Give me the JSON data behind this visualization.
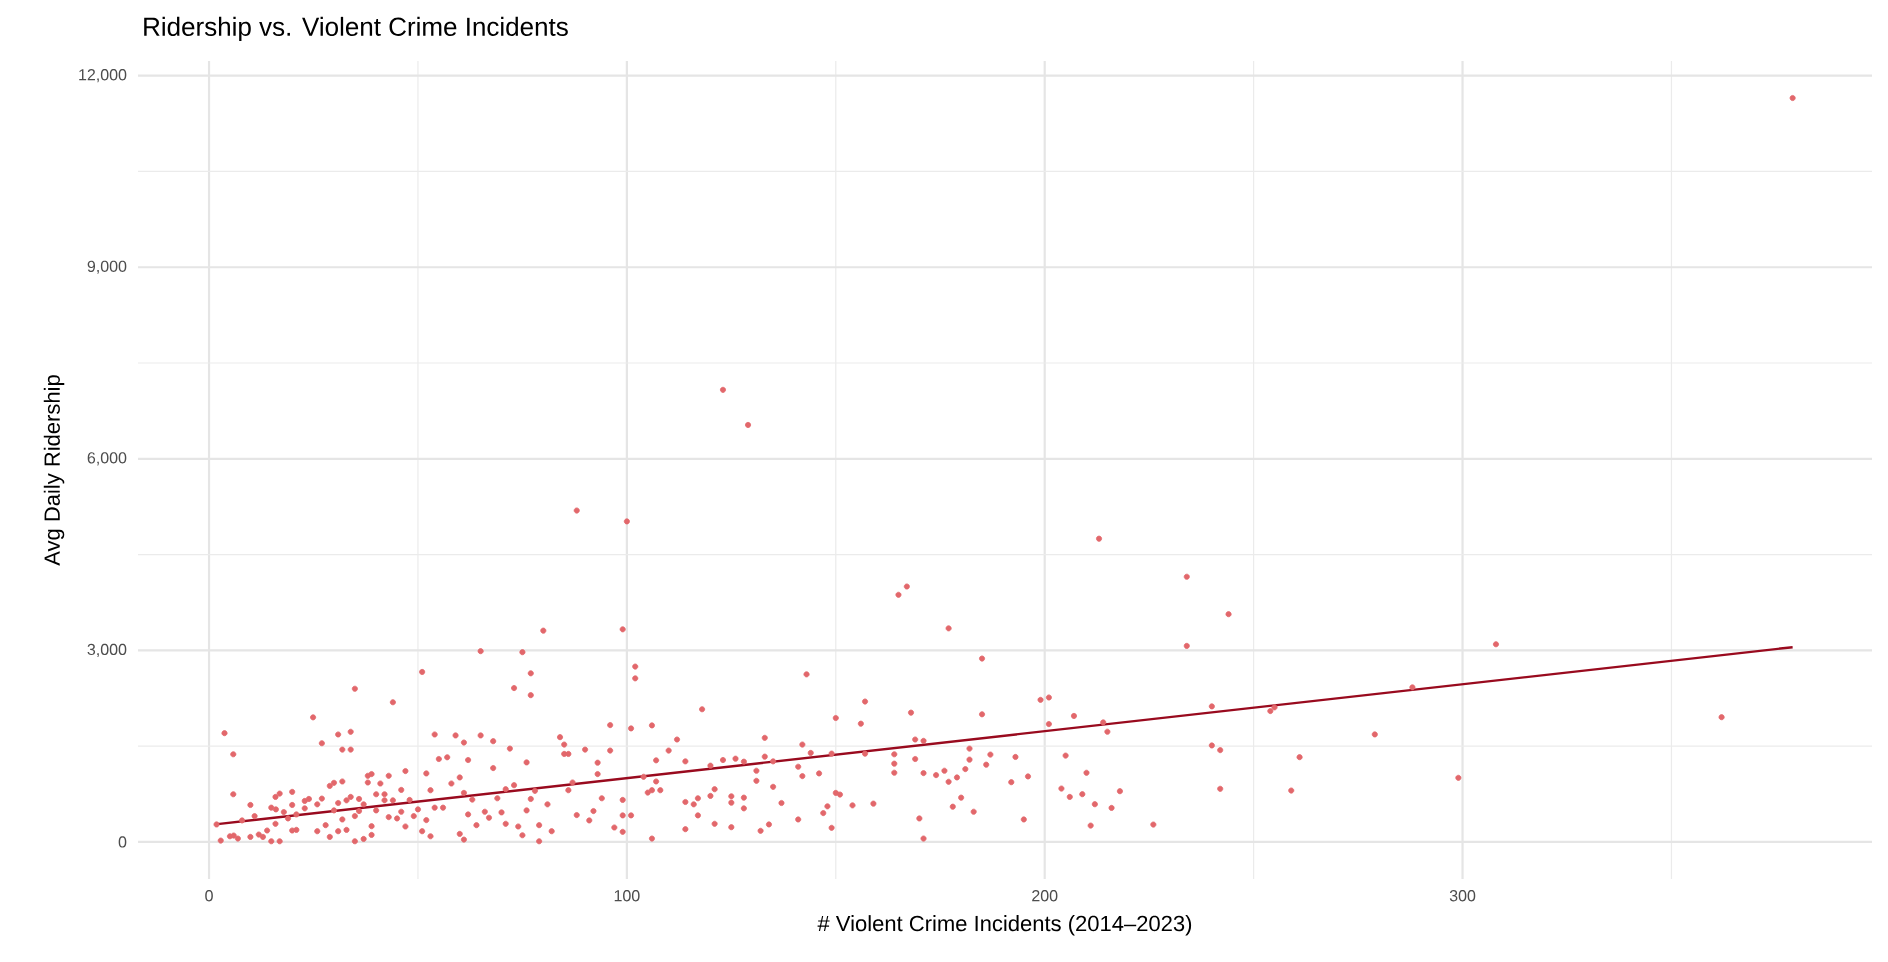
{
  "chart_data": {
    "type": "scatter",
    "title": "Ridership vs. Violent Crime Incidents",
    "xlabel": "# Violent Crime Incidents (2014–2023)",
    "ylabel": "Avg Daily Ridership",
    "xlim": [
      -17,
      398
    ],
    "ylim": [
      -580,
      12230
    ],
    "xticks": [
      0,
      {
        "value": 50,
        "label": null
      },
      100,
      {
        "value": 150,
        "label": null
      },
      200,
      {
        "value": 250,
        "label": null
      },
      300,
      {
        "value": 350,
        "label": null
      }
    ],
    "yticks": [
      0,
      {
        "value": 1500,
        "label": null
      },
      {
        "value": 3000,
        "label": "3,000"
      },
      {
        "value": 4500,
        "label": null
      },
      {
        "value": 6000,
        "label": "6,000"
      },
      {
        "value": 7500,
        "label": null
      },
      {
        "value": 9000,
        "label": "9,000"
      },
      {
        "value": 10500,
        "label": null
      },
      {
        "value": 12000,
        "label": "12,000"
      }
    ],
    "grid": true,
    "series": [
      {
        "color": "#e2676b",
        "marker": "circle",
        "x": [
          1.8,
          2.8,
          3.7,
          5.8,
          5.8,
          5,
          5.9,
          6.9,
          7.9,
          9.9,
          9.9,
          10.9,
          11.9,
          12.9,
          13.9,
          14.9,
          14.9,
          15.9,
          16,
          15.9,
          16.9,
          16.9,
          17.9,
          18.9,
          19.9,
          19.9,
          19.9,
          20.9,
          20.9,
          22.9,
          22.9,
          23.9,
          24.9,
          25.9,
          25.9,
          27,
          27,
          27.9,
          28.9,
          28.9,
          29.9,
          29.9,
          30.9,
          30.9,
          30.9,
          31.9,
          31.9,
          31.9,
          32.9,
          32.9,
          33.9,
          33.9,
          33.9,
          34.9,
          34.9,
          34.9,
          35.9,
          35.9,
          37,
          37,
          38,
          38,
          38.9,
          38.9,
          38.9,
          40,
          40,
          41,
          42,
          42,
          43,
          43,
          44,
          44,
          45,
          46,
          46,
          47,
          47,
          48,
          49,
          50,
          51,
          51,
          52,
          52,
          53,
          53,
          54,
          54,
          55,
          56,
          57,
          58,
          59,
          60,
          60,
          61,
          61,
          61,
          62,
          62,
          63,
          64,
          65,
          65,
          66,
          67,
          68,
          68,
          69,
          70,
          71,
          71,
          72,
          73,
          73,
          74,
          75,
          75,
          76,
          76,
          77,
          77,
          77,
          78,
          79,
          79,
          80,
          81,
          82,
          84,
          85,
          85,
          86,
          87,
          86,
          88,
          90,
          91,
          92,
          93,
          93,
          94,
          96,
          96,
          97,
          99,
          99,
          99,
          99,
          101,
          101,
          102,
          102,
          104,
          105,
          106,
          106,
          106,
          107,
          107,
          108,
          110,
          112,
          114,
          114,
          114,
          116,
          117,
          117,
          118,
          120,
          120,
          121,
          121,
          123,
          125,
          125,
          125,
          126,
          128,
          128,
          128,
          131,
          131,
          132,
          133,
          133,
          134,
          135,
          135,
          137,
          141,
          141,
          142,
          142,
          143,
          144,
          146,
          147,
          148,
          149,
          149,
          150,
          150,
          151,
          154,
          156,
          157,
          157,
          159,
          164,
          164,
          164,
          168,
          169,
          169,
          170,
          171,
          171,
          171,
          174,
          176,
          177,
          177,
          178,
          179,
          180,
          181,
          182,
          182,
          183,
          185,
          185,
          186,
          187,
          192,
          193,
          195,
          196,
          199,
          201,
          201,
          204,
          205,
          206,
          207,
          213,
          234,
          244,
          234,
          308,
          214,
          215,
          210,
          209,
          212,
          218,
          216,
          211,
          226,
          240,
          240,
          242,
          242,
          254,
          255,
          259,
          261,
          279,
          288,
          299,
          362,
          379,
          88,
          100,
          123,
          129,
          165,
          167
        ],
        "values": [
          274,
          21,
          1704,
          1373,
          747,
          89,
          100,
          53,
          337,
          579,
          79,
          405,
          116,
          79,
          179,
          537,
          11,
          705,
          510,
          284,
          757,
          11,
          468,
          368,
          784,
          579,
          179,
          431,
          189,
          642,
          526,
          673,
          1951,
          589,
          168,
          1546,
          679,
          263,
          878,
          79,
          926,
          494,
          1683,
          610,
          168,
          1446,
          947,
          352,
          652,
          189,
          1725,
          1446,
          705,
          2399,
          405,
          11,
          673,
          484,
          589,
          47,
          1036,
          931,
          1063,
          247,
          110,
          747,
          494,
          915,
          747,
          652,
          1036,
          389,
          2188,
          652,
          368,
          815,
          473,
          1110,
          242,
          658,
          405,
          510,
          2662,
          168,
          1073,
          342,
          810,
          89,
          1683,
          537,
          1299,
          537,
          1326,
          915,
          1668,
          1010,
          126,
          1557,
          768,
          37,
          1283,
          431,
          663,
          263,
          2988,
          1668,
          473,
          379,
          1578,
          1157,
          684,
          463,
          826,
          284,
          1462,
          2410,
          889,
          242,
          2972,
          105,
          1246,
          494,
          2641,
          2299,
          673,
          800,
          263,
          11,
          3309,
          589,
          168,
          1641,
          1525,
          1378,
          1378,
          931,
          810,
          421,
          1446,
          337,
          484,
          1241,
          1063,
          684,
          1830,
          1431,
          226,
          3330,
          658,
          416,
          158,
          1778,
          416,
          2746,
          2562,
          1020,
          773,
          1825,
          810,
          53,
          1278,
          947,
          810,
          1431,
          1604,
          1262,
          626,
          200,
          589,
          684,
          416,
          2078,
          1194,
          721,
          826,
          284,
          1283,
          715,
          615,
          231,
          1304,
          1257,
          694,
          526,
          1115,
          957,
          174,
          1630,
          1336,
          274,
          1262,
          863,
          610,
          1178,
          352,
          1525,
          1031,
          2625,
          1394,
          1073,
          452,
          558,
          1383,
          221,
          1941,
          768,
          742,
          573,
          1852,
          2199,
          1383,
          600,
          1373,
          1226,
          1084,
          2025,
          1604,
          1299,
          368,
          1583,
          1078,
          53,
          1047,
          1115,
          3345,
          942,
          552,
          1010,
          694,
          1141,
          1462,
          1289,
          473,
          2872,
          1999,
          1210,
          1368,
          936,
          1331,
          352,
          1026,
          2225,
          2262,
          1846,
          836,
          1352,
          705,
          1973,
          4749,
          4153,
          3567,
          3070,
          3096,
          1872,
          1726,
          1083,
          748,
          591,
          795,
          533,
          256,
          272,
          2123,
          1511,
          1438,
          832,
          2050,
          2108,
          805,
          1328,
          1684,
          2421,
          1004,
          1954,
          11650,
          5190,
          5020,
          7080,
          6530,
          3870,
          4000
        ]
      },
      {
        "type": "line",
        "color": "#990a1e",
        "marker": "none",
        "x": [
          2,
          379
        ],
        "values": [
          280,
          3050
        ]
      }
    ]
  }
}
